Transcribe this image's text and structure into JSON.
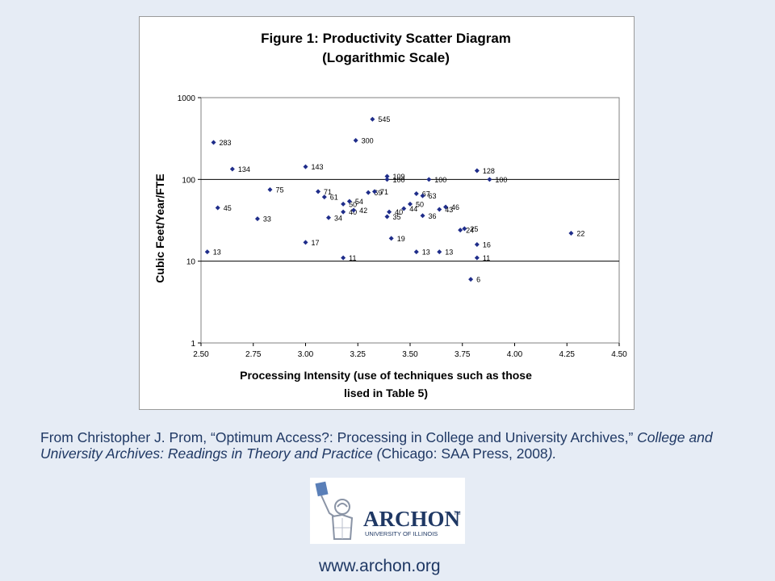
{
  "chart_data": {
    "type": "scatter",
    "title": "Figure 1: Productivity Scatter Diagram",
    "subtitle": "(Logarithmic Scale)",
    "xlabel_line1": "Processing Intensity (use of techniques such as those",
    "xlabel_line2": "lised in Table 5)",
    "ylabel": "Cubic Feet/Year/FTE",
    "xlim": [
      2.5,
      4.5
    ],
    "ylim": [
      1,
      1000
    ],
    "yscale": "log",
    "x_ticks": [
      "2.50",
      "2.75",
      "3.00",
      "3.25",
      "3.50",
      "3.75",
      "4.00",
      "4.25",
      "4.50"
    ],
    "y_ticks": [
      "1",
      "10",
      "100",
      "1000"
    ],
    "grid": "horizontal major",
    "marker_color": "#1f2d8a",
    "points": [
      {
        "x": 2.53,
        "y": 13,
        "label": "13"
      },
      {
        "x": 2.56,
        "y": 283,
        "label": "283"
      },
      {
        "x": 2.58,
        "y": 45,
        "label": "45"
      },
      {
        "x": 2.65,
        "y": 134,
        "label": "134"
      },
      {
        "x": 2.77,
        "y": 33,
        "label": "33"
      },
      {
        "x": 2.83,
        "y": 75,
        "label": "75"
      },
      {
        "x": 3.0,
        "y": 143,
        "label": "143"
      },
      {
        "x": 3.0,
        "y": 17,
        "label": "17"
      },
      {
        "x": 3.06,
        "y": 71,
        "label": "71"
      },
      {
        "x": 3.09,
        "y": 61,
        "label": "61"
      },
      {
        "x": 3.11,
        "y": 34,
        "label": "34"
      },
      {
        "x": 3.18,
        "y": 11,
        "label": "11"
      },
      {
        "x": 3.18,
        "y": 40,
        "label": "40"
      },
      {
        "x": 3.18,
        "y": 50,
        "label": "50"
      },
      {
        "x": 3.21,
        "y": 54,
        "label": "54"
      },
      {
        "x": 3.23,
        "y": 42,
        "label": "42"
      },
      {
        "x": 3.24,
        "y": 300,
        "label": "300"
      },
      {
        "x": 3.3,
        "y": 69,
        "label": "69"
      },
      {
        "x": 3.32,
        "y": 545,
        "label": "545"
      },
      {
        "x": 3.33,
        "y": 71,
        "label": "71"
      },
      {
        "x": 3.39,
        "y": 109,
        "label": "109"
      },
      {
        "x": 3.39,
        "y": 100,
        "label": "100"
      },
      {
        "x": 3.39,
        "y": 35,
        "label": "35"
      },
      {
        "x": 3.4,
        "y": 40,
        "label": "40"
      },
      {
        "x": 3.41,
        "y": 19,
        "label": "19"
      },
      {
        "x": 3.47,
        "y": 44,
        "label": "44"
      },
      {
        "x": 3.5,
        "y": 50,
        "label": "50"
      },
      {
        "x": 3.53,
        "y": 67,
        "label": "67"
      },
      {
        "x": 3.53,
        "y": 13,
        "label": "13"
      },
      {
        "x": 3.56,
        "y": 63,
        "label": "63"
      },
      {
        "x": 3.56,
        "y": 36,
        "label": "36"
      },
      {
        "x": 3.59,
        "y": 100,
        "label": "100"
      },
      {
        "x": 3.64,
        "y": 43,
        "label": "43"
      },
      {
        "x": 3.64,
        "y": 13,
        "label": "13"
      },
      {
        "x": 3.67,
        "y": 46,
        "label": "46"
      },
      {
        "x": 3.74,
        "y": 24,
        "label": "24"
      },
      {
        "x": 3.76,
        "y": 25,
        "label": "25"
      },
      {
        "x": 3.79,
        "y": 6,
        "label": "6"
      },
      {
        "x": 3.82,
        "y": 128,
        "label": "128"
      },
      {
        "x": 3.82,
        "y": 16,
        "label": "16"
      },
      {
        "x": 3.82,
        "y": 11,
        "label": "11"
      },
      {
        "x": 3.88,
        "y": 100,
        "label": "100"
      },
      {
        "x": 4.27,
        "y": 22,
        "label": "22"
      }
    ]
  },
  "citation": {
    "part1": "From Christopher J. Prom, “Optimum Access?: Processing in College and University Archives,” ",
    "part2": "College and University Archives: Readings in Theory and Practice (",
    "part3": "Chicago: SAA Press, 2008",
    "part4": ")."
  },
  "logo": {
    "name": "ARCHON",
    "trademark": "TM",
    "tagline": "UNIVERSITY OF ILLINOIS",
    "color": "#1f3864"
  },
  "url": "www.archon.org"
}
